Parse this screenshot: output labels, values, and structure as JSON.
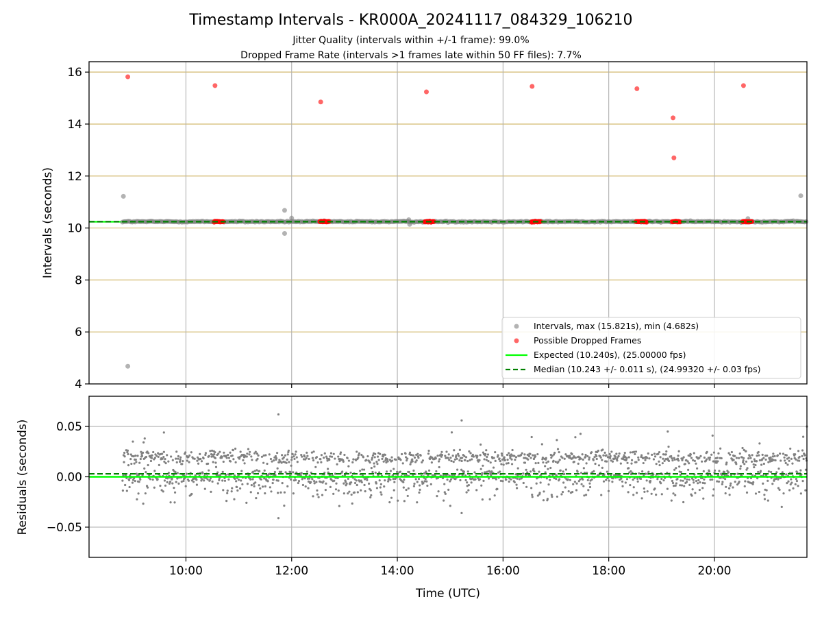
{
  "figure": {
    "title": "Timestamp Intervals - KR000A_20241117_084329_106210",
    "subtitle_1": "Jitter Quality (intervals within +/-1 frame): 99.0%",
    "subtitle_2": "Dropped Frame Rate (intervals >1 frames late within 50 FF files): 7.7%",
    "xlabel": "Time (UTC)"
  },
  "colors": {
    "intervals": "#808080",
    "dropped": "#ff0000",
    "expected": "#00ff00",
    "median": "#008000",
    "hgrid_top": "#d2b96e",
    "grid": "#b0b0b0"
  },
  "chart_data": [
    {
      "type": "scatter",
      "panel": "intervals",
      "ylabel": "Intervals (seconds)",
      "xlim": [
        "08:10",
        "21:45"
      ],
      "ylim": [
        4,
        16.4
      ],
      "x_ticks": [
        "10:00",
        "12:00",
        "14:00",
        "16:00",
        "18:00",
        "20:00"
      ],
      "y_ticks": [
        "4",
        "6",
        "8",
        "10",
        "12",
        "14",
        "16"
      ],
      "grid": true,
      "legend_position": "lower-right",
      "legend": [
        "Intervals, max (15.821s), min (4.682s)",
        "Possible Dropped Frames",
        "Expected (10.240s), (25.00000 fps)",
        "Median (10.243 +/- 0.011 s), (24.99320 +/- 0.03 fps)"
      ],
      "expected_value": 10.24,
      "median_value": 10.243,
      "interval_band": {
        "start": "08:48",
        "end": "21:45",
        "value": 10.243
      },
      "interval_outliers": [
        {
          "x": "08:49",
          "y": 11.22
        },
        {
          "x": "08:54",
          "y": 4.68
        },
        {
          "x": "11:52",
          "y": 10.68
        },
        {
          "x": "11:52",
          "y": 9.79
        },
        {
          "x": "12:00",
          "y": 10.38
        },
        {
          "x": "14:13",
          "y": 10.32
        },
        {
          "x": "14:14",
          "y": 10.14
        },
        {
          "x": "20:38",
          "y": 10.36
        },
        {
          "x": "21:38",
          "y": 11.24
        }
      ],
      "dropped_frames": [
        {
          "x": "08:54",
          "y": 15.82
        },
        {
          "x": "10:33",
          "y": 15.48
        },
        {
          "x": "12:33",
          "y": 14.85
        },
        {
          "x": "14:33",
          "y": 15.24
        },
        {
          "x": "16:33",
          "y": 15.45
        },
        {
          "x": "18:32",
          "y": 15.36
        },
        {
          "x": "19:13",
          "y": 14.24
        },
        {
          "x": "19:14",
          "y": 12.7
        },
        {
          "x": "20:33",
          "y": 15.48
        }
      ],
      "dropped_clusters_at_median": [
        {
          "start": "10:32",
          "end": "10:43"
        },
        {
          "start": "12:32",
          "end": "12:43"
        },
        {
          "start": "14:31",
          "end": "14:42"
        },
        {
          "start": "16:32",
          "end": "16:43"
        },
        {
          "start": "18:31",
          "end": "18:43"
        },
        {
          "start": "19:12",
          "end": "19:21"
        },
        {
          "start": "20:32",
          "end": "20:43"
        }
      ]
    },
    {
      "type": "scatter",
      "panel": "residuals",
      "ylabel": "Residuals (seconds)",
      "xlim": [
        "08:10",
        "21:45"
      ],
      "ylim": [
        -0.08,
        0.08
      ],
      "y_ticks": [
        "−0.05",
        "0.00",
        "0.05"
      ],
      "x_ticks": [
        "10:00",
        "12:00",
        "14:00",
        "16:00",
        "18:00",
        "20:00"
      ],
      "grid": true,
      "expected_value": 0.0,
      "median_value": 0.003,
      "residual_bands": [
        {
          "center": 0.019,
          "spread": 0.006
        },
        {
          "center": 0.0,
          "spread": 0.006
        },
        {
          "center": -0.012,
          "spread": 0.01
        }
      ],
      "residual_range": {
        "start": "08:48",
        "end": "21:45"
      },
      "residual_extremes": [
        {
          "x": "11:45",
          "y": 0.062
        },
        {
          "x": "15:13",
          "y": 0.056
        },
        {
          "x": "21:45",
          "y": 0.05
        },
        {
          "x": "11:45",
          "y": -0.041
        },
        {
          "x": "15:13",
          "y": -0.036
        },
        {
          "x": "09:35",
          "y": 0.044
        },
        {
          "x": "19:07",
          "y": 0.045
        }
      ]
    }
  ]
}
